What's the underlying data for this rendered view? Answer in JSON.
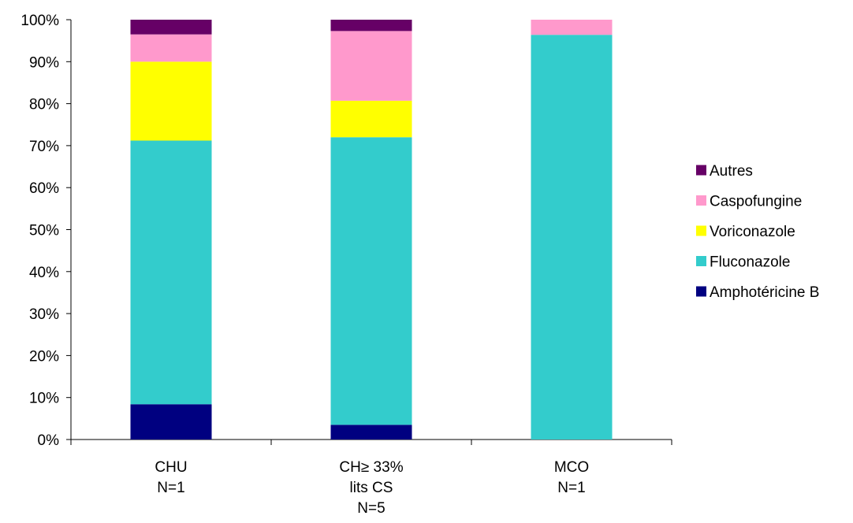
{
  "chart_data": {
    "type": "bar",
    "stacked": true,
    "percent_stacked": true,
    "categories": [
      [
        "CHU",
        "N=1"
      ],
      [
        "CH≥ 33%",
        "lits CS",
        "N=5"
      ],
      [
        "MCO",
        "N=1"
      ]
    ],
    "series": [
      {
        "name": "Amphotéricine B",
        "color": "#000080",
        "values": [
          8.4,
          3.5,
          0
        ]
      },
      {
        "name": "Fluconazole",
        "color": "#33CCCC",
        "values": [
          62.8,
          68.5,
          96.4
        ]
      },
      {
        "name": "Voriconazole",
        "color": "#FFFF00",
        "values": [
          18.8,
          8.7,
          0
        ]
      },
      {
        "name": "Caspofungine",
        "color": "#FF99CC",
        "values": [
          6.5,
          16.6,
          3.6
        ]
      },
      {
        "name": "Autres",
        "color": "#660066",
        "values": [
          3.5,
          2.7,
          0
        ]
      }
    ],
    "yticks": [
      "0%",
      "10%",
      "20%",
      "30%",
      "40%",
      "50%",
      "60%",
      "70%",
      "80%",
      "90%",
      "100%"
    ],
    "ylim": [
      0,
      100
    ],
    "legend_position": "right",
    "legend_order": [
      "Autres",
      "Caspofungine",
      "Voriconazole",
      "Fluconazole",
      "Amphotéricine B"
    ],
    "grid": false
  }
}
